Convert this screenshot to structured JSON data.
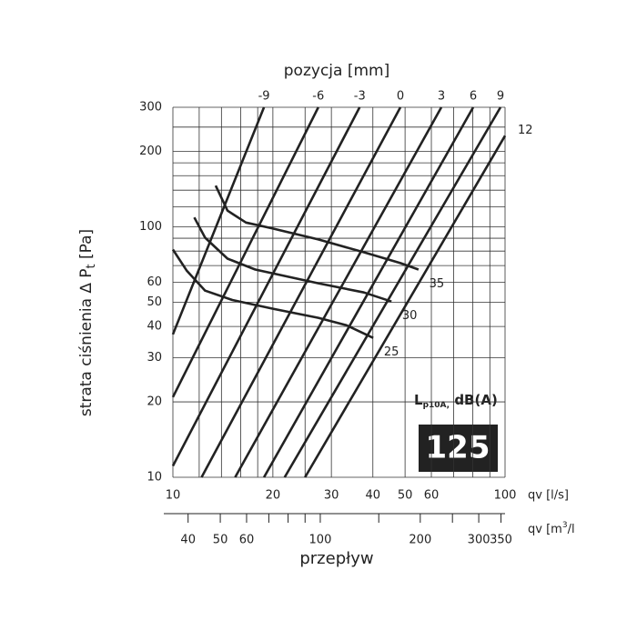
{
  "chart_data": {
    "type": "line",
    "top_label": "pozycja [mm]",
    "y_label_parts": [
      "strata ciśnienia ∆ P",
      "t",
      " [Pa]"
    ],
    "x_label": "qv [l/s]",
    "x2_label_parts": [
      "qv [m",
      "3",
      "/l"
    ],
    "bottom_label": "przepływ",
    "noise_label_parts": [
      "L",
      "p10A,",
      " dB(A)"
    ],
    "size_badge": "125",
    "log_x": true,
    "log_y": true,
    "grid": true,
    "xlim": [
      10,
      100
    ],
    "ylim": [
      10,
      300
    ],
    "xticks": [
      10,
      20,
      30,
      40,
      50,
      60,
      100
    ],
    "yticks": [
      10,
      20,
      30,
      40,
      50,
      60,
      100,
      200,
      300
    ],
    "xgrid": [
      10,
      12,
      14,
      16,
      18,
      20,
      25,
      30,
      40,
      50,
      60,
      70,
      80,
      90,
      100
    ],
    "ygrid": [
      10,
      20,
      30,
      40,
      50,
      60,
      70,
      80,
      90,
      100,
      120,
      140,
      160,
      180,
      200,
      250,
      300
    ],
    "x2lim": [
      36,
      360
    ],
    "x2ticks": [
      40,
      50,
      60,
      100,
      200,
      300,
      350
    ],
    "x2minor": [
      40,
      50,
      60,
      70,
      80,
      90,
      100,
      150,
      200,
      250,
      300,
      350
    ],
    "series": [
      {
        "name": "-9",
        "group": "position",
        "color": "#222222",
        "x": [
          10,
          18.8
        ],
        "values": [
          37.2,
          300
        ]
      },
      {
        "name": "-6",
        "group": "position",
        "color": "#222222",
        "x": [
          10,
          27.4
        ],
        "values": [
          20.9,
          300
        ]
      },
      {
        "name": "-3",
        "group": "position",
        "color": "#222222",
        "x": [
          10,
          36.5
        ],
        "values": [
          11.1,
          300
        ]
      },
      {
        "name": "0",
        "group": "position",
        "color": "#222222",
        "x": [
          12.2,
          48.4
        ],
        "values": [
          10,
          300
        ]
      },
      {
        "name": "3",
        "group": "position",
        "color": "#222222",
        "x": [
          15.4,
          64.3
        ],
        "values": [
          10,
          300
        ]
      },
      {
        "name": "6",
        "group": "position",
        "color": "#222222",
        "x": [
          18.8,
          80.2
        ],
        "values": [
          10,
          300
        ]
      },
      {
        "name": "9",
        "group": "position",
        "color": "#222222",
        "x": [
          21.7,
          96.9
        ],
        "values": [
          10,
          300
        ]
      },
      {
        "name": "12",
        "group": "position",
        "color": "#222222",
        "x": [
          25,
          100
        ],
        "values": [
          10,
          231
        ]
      },
      {
        "name": "35",
        "group": "noise",
        "color": "#222222",
        "x": [
          13.45,
          14.6,
          16.6,
          20,
          27.4,
          37.6,
          48.4,
          54.9
        ],
        "values": [
          146,
          116,
          104,
          98.4,
          89,
          79.1,
          71.6,
          67.5
        ]
      },
      {
        "name": "30",
        "group": "noise",
        "color": "#222222",
        "x": [
          11.6,
          12.5,
          14.6,
          17.7,
          27.4,
          37.6,
          45.5
        ],
        "values": [
          109,
          90.4,
          74.6,
          67.5,
          59.5,
          54.7,
          50.3
        ]
      },
      {
        "name": "25",
        "group": "noise",
        "color": "#222222",
        "x": [
          10,
          11,
          12.5,
          15.1,
          20,
          27.4,
          33.2,
          40.1
        ],
        "values": [
          81.1,
          66.9,
          55.6,
          51,
          47.1,
          43.3,
          40.5,
          36
        ]
      }
    ]
  }
}
